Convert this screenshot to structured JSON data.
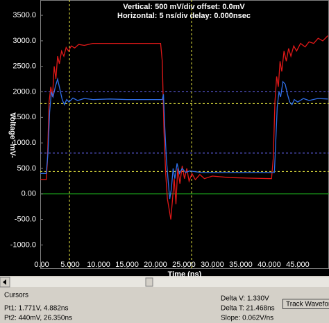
{
  "chart_data": {
    "type": "line",
    "title": "Vertical: 500 mV/div  offset: 0.0mV",
    "subtitle": "Horizontal: 5 ns/div  delay: 0.000nsec",
    "x_label": "Time (ns)",
    "y_label": "Voltage -mV-",
    "xlim": [
      -0.25,
      50.5
    ],
    "ylim": [
      -1470,
      3800
    ],
    "xticks": [
      {
        "value": 0,
        "label": "0.00"
      },
      {
        "value": 5,
        "label": "5.000"
      },
      {
        "value": 10,
        "label": "10.000"
      },
      {
        "value": 15,
        "label": "15.000"
      },
      {
        "value": 20,
        "label": "20.000"
      },
      {
        "value": 25,
        "label": "25.000"
      },
      {
        "value": 30,
        "label": "30.000"
      },
      {
        "value": 35,
        "label": "35.000"
      },
      {
        "value": 40,
        "label": "40.000"
      },
      {
        "value": 45,
        "label": "45.000"
      }
    ],
    "yticks": [
      {
        "value": 3500,
        "label": "3500.0"
      },
      {
        "value": 3000,
        "label": "3000.0"
      },
      {
        "value": 2500,
        "label": "2500.0"
      },
      {
        "value": 2000,
        "label": "2000.0"
      },
      {
        "value": 1500,
        "label": "1500.0"
      },
      {
        "value": 1000,
        "label": "1000.0"
      },
      {
        "value": 500,
        "label": "500.0"
      },
      {
        "value": 0,
        "label": "0.00"
      },
      {
        "value": -500,
        "label": "-500.0"
      },
      {
        "value": -1000,
        "label": "-1000.0"
      }
    ],
    "cursor_x": [
      4.882,
      26.35
    ],
    "cursor_y": [
      1771,
      440
    ],
    "cursor_color": "#e8e840",
    "reference_y": [
      2000,
      800
    ],
    "reference_color": "#6a6aff",
    "series": [
      {
        "color": "#e01818",
        "x": [
          -0.2,
          0.8,
          1.0,
          1.3,
          1.6,
          1.9,
          2.2,
          2.5,
          2.8,
          3.1,
          3.5,
          3.9,
          4.3,
          4.7,
          5.2,
          5.8,
          6.5,
          7.5,
          9,
          12,
          15,
          18,
          20.9,
          21.2,
          21.5,
          21.8,
          22.1,
          22.4,
          22.7,
          23.0,
          23.3,
          23.6,
          23.9,
          24.3,
          24.7,
          25.1,
          25.5,
          25.9,
          26.4,
          27,
          27.8,
          28.6,
          30,
          33,
          36,
          40.4,
          40.7,
          41.0,
          41.3,
          41.6,
          41.9,
          42.2,
          42.6,
          43,
          43.4,
          43.8,
          44.3,
          44.8,
          45.5,
          46.3,
          47,
          47.8,
          48.6,
          49.4,
          50.3
        ],
        "values": [
          280,
          280,
          600,
          1800,
          2100,
          1900,
          2500,
          2250,
          2700,
          2550,
          2800,
          2700,
          2870,
          2800,
          2900,
          2860,
          2930,
          2910,
          2950,
          2950,
          2950,
          2950,
          2950,
          2600,
          1200,
          400,
          -100,
          -300,
          -500,
          -100,
          300,
          -200,
          500,
          200,
          550,
          300,
          500,
          250,
          400,
          280,
          380,
          300,
          350,
          320,
          310,
          300,
          700,
          1800,
          2300,
          2100,
          2600,
          2400,
          2800,
          2600,
          2850,
          2700,
          2900,
          2800,
          2950,
          2880,
          2980,
          2950,
          3050,
          3000,
          3100
        ]
      },
      {
        "color": "#2f6fe8",
        "x": [
          -0.2,
          0.8,
          1.1,
          1.4,
          1.7,
          2.0,
          2.4,
          2.8,
          3.2,
          3.6,
          4.0,
          4.4,
          4.8,
          5.5,
          6.3,
          7.5,
          9,
          12,
          15,
          18,
          21.2,
          21.4,
          21.6,
          21.9,
          22.2,
          22.5,
          22.8,
          23.1,
          23.4,
          23.8,
          24.2,
          24.7,
          25.3,
          26,
          28,
          32,
          36,
          40.9,
          41.1,
          41.4,
          41.7,
          42,
          42.4,
          42.8,
          43.2,
          43.6,
          44,
          44.4,
          45,
          46,
          47,
          48.5,
          50.3
        ],
        "values": [
          400,
          400,
          800,
          1600,
          2000,
          1900,
          2100,
          2250,
          2050,
          1850,
          1750,
          1850,
          1800,
          1880,
          1830,
          1870,
          1850,
          1860,
          1850,
          1850,
          1850,
          1950,
          1400,
          700,
          300,
          -100,
          100,
          500,
          300,
          600,
          400,
          500,
          420,
          450,
          420,
          420,
          420,
          420,
          900,
          1700,
          2000,
          1900,
          2200,
          2150,
          1950,
          1800,
          1750,
          1850,
          1800,
          1870,
          1830,
          1870,
          1860
        ]
      }
    ]
  },
  "cursors_panel": {
    "title": "Cursors",
    "pt1": "Pt1: 1.771V, 4.882ns",
    "pt2": "Pt2: 440mV, 26.350ns",
    "delta_v": "Delta V: 1.330V",
    "delta_t": "Delta T: 21.468ns",
    "slope": "Slope: 0.062V/ns",
    "button": "Track Waveform"
  }
}
